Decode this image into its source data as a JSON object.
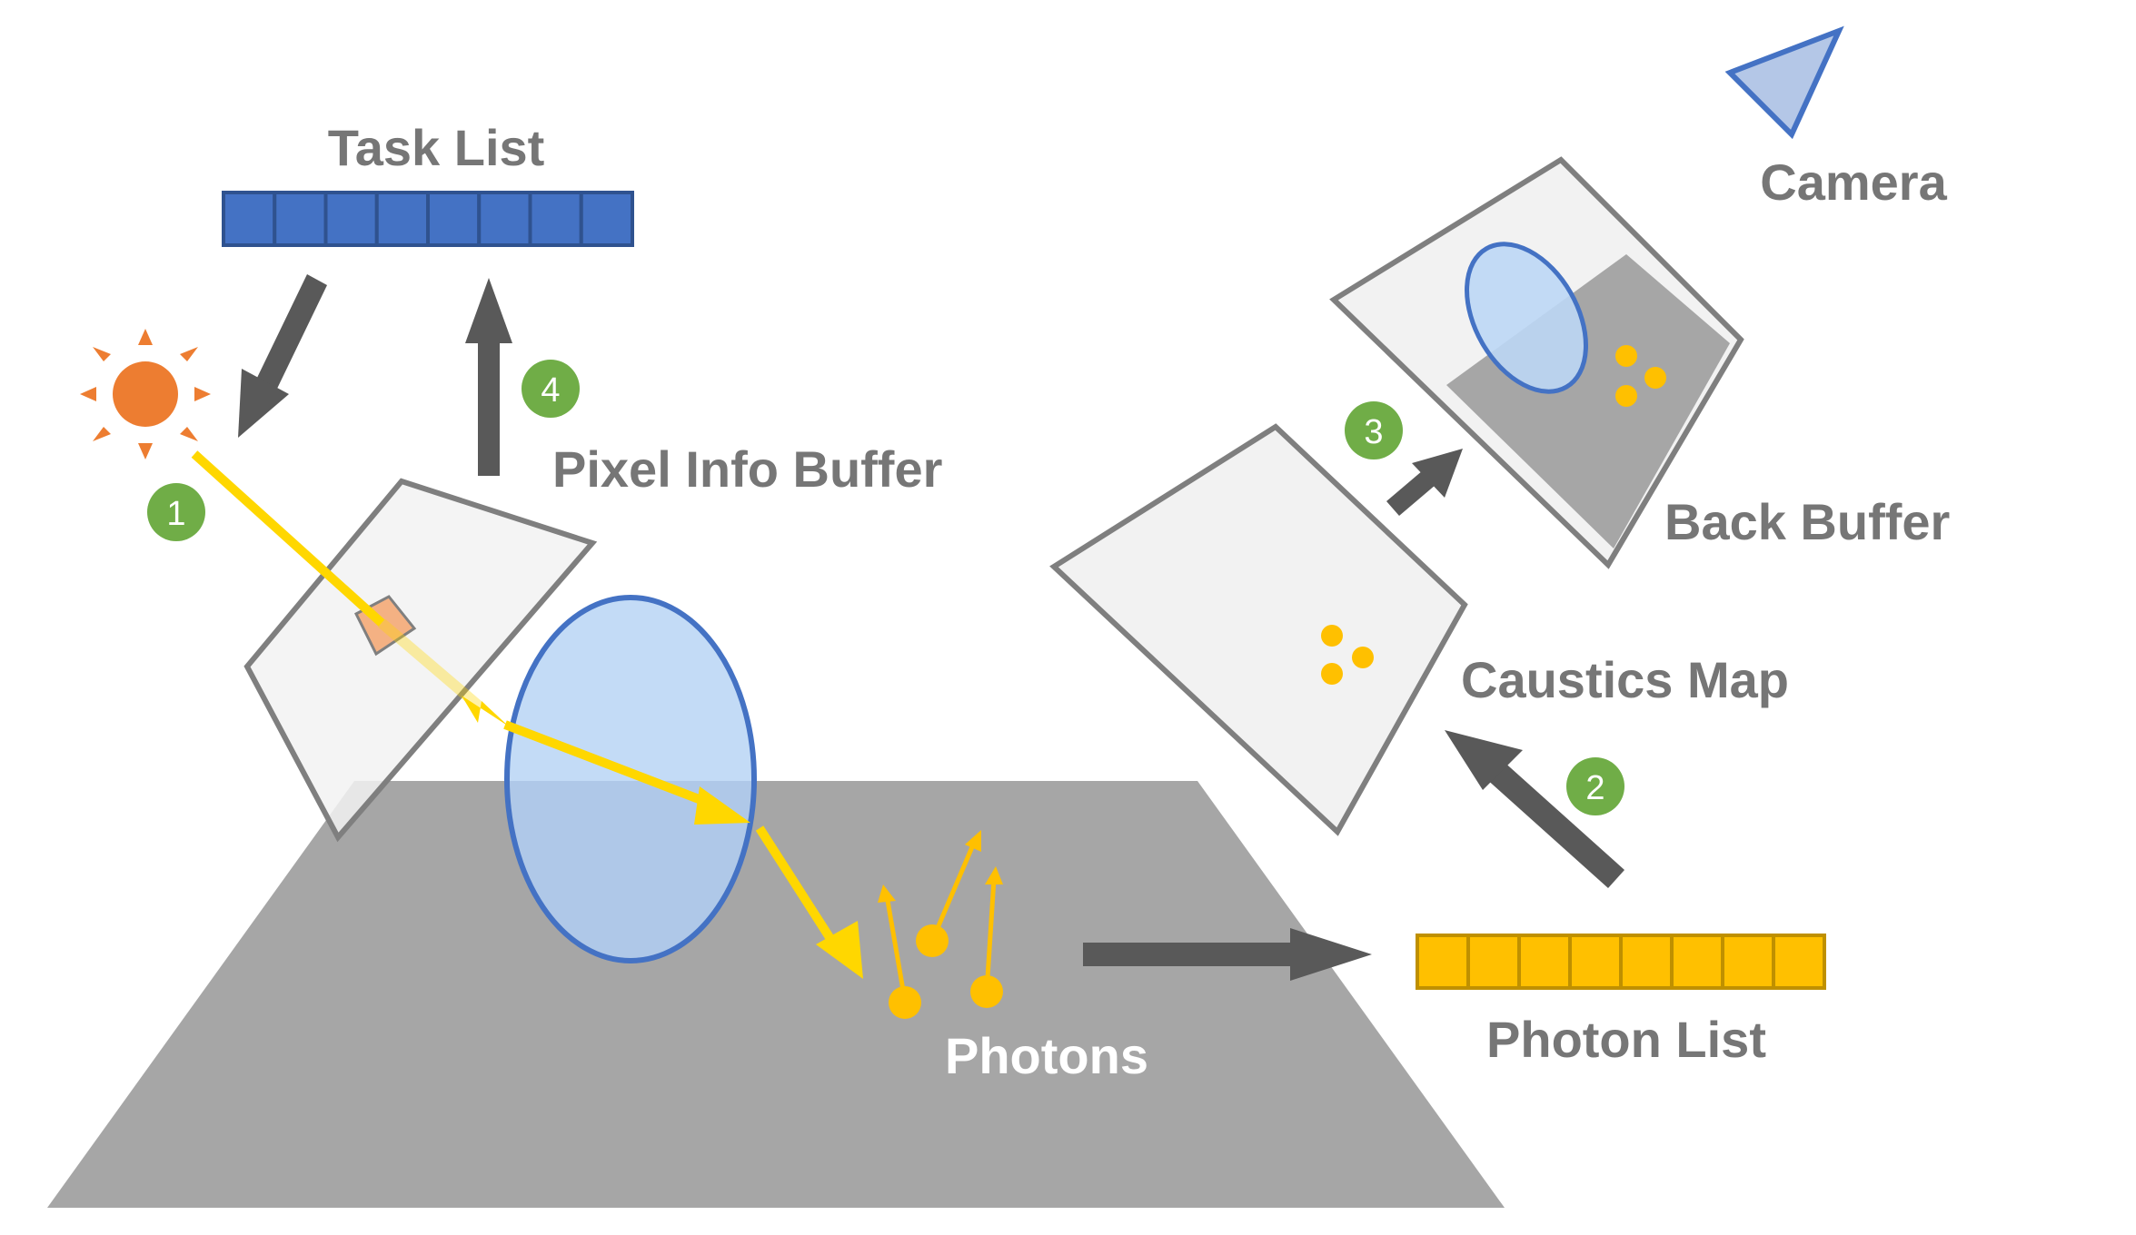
{
  "labels": {
    "task_list": "Task List",
    "camera": "Camera",
    "pixel_info_buffer": "Pixel Info Buffer",
    "back_buffer": "Back Buffer",
    "caustics_map": "Caustics Map",
    "photons": "Photons",
    "photon_list": "Photon List"
  },
  "steps": [
    "1",
    "2",
    "3",
    "4"
  ],
  "task_list_cells": 8,
  "photon_list_cells": 8,
  "colors": {
    "label_gray": "#767676",
    "arrow_gray": "#595959",
    "ground_gray": "#a6a6a6",
    "panel_fill": "#f2f2f2",
    "panel_stroke": "#7f7f7f",
    "task_list_blue": "#4472c4",
    "task_list_border": "#2f528f",
    "photon_yellow": "#ffc000",
    "photon_border": "#bf9000",
    "light_ray_yellow": "#ffd700",
    "lens_fill": "#bdd7f5",
    "lens_stroke": "#4472c4",
    "sun_orange": "#ed7d31",
    "step_badge_green": "#70ad47",
    "pixel_patch": "#f4b183"
  }
}
